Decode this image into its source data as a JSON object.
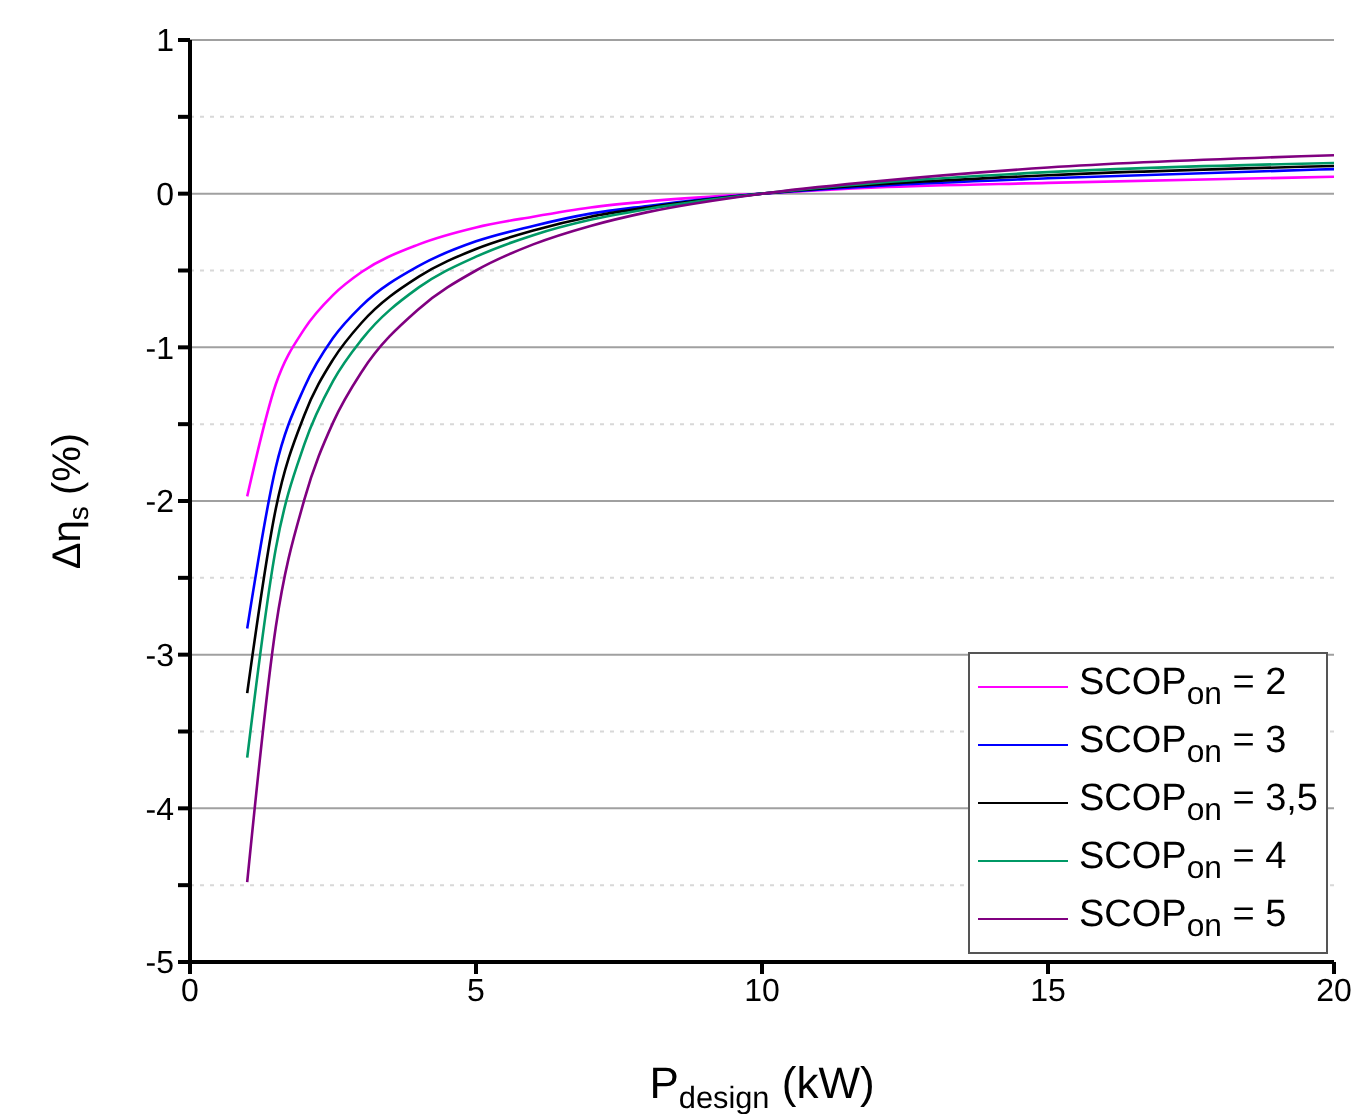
{
  "chart_data": {
    "type": "line",
    "xlabel": "P$_{design}$ (kW)",
    "ylabel": "Δη$_{s}$ (%)",
    "x": [
      1,
      1.5,
      2,
      2.5,
      3,
      4,
      5,
      6,
      7,
      8,
      10,
      12,
      15,
      20
    ],
    "series": [
      {
        "name": "SCOP$_{on}$ = 2",
        "color": "#ff00ff",
        "values": [
          -1.97,
          -1.24,
          -0.88,
          -0.66,
          -0.51,
          -0.33,
          -0.22,
          -0.15,
          -0.09,
          -0.05,
          0,
          0.04,
          0.07,
          0.11
        ]
      },
      {
        "name": "SCOP$_{on}$ = 3",
        "color": "#0000ff",
        "values": [
          -2.83,
          -1.78,
          -1.26,
          -0.94,
          -0.73,
          -0.47,
          -0.31,
          -0.21,
          -0.13,
          -0.08,
          0,
          0.05,
          0.1,
          0.16
        ]
      },
      {
        "name": "SCOP$_{on}$ = 3,5",
        "color": "#000000",
        "values": [
          -3.25,
          -2.05,
          -1.44,
          -1.08,
          -0.84,
          -0.54,
          -0.36,
          -0.24,
          -0.15,
          -0.09,
          0,
          0.06,
          0.12,
          0.18
        ]
      },
      {
        "name": "SCOP$_{on}$ = 4",
        "color": "#009966",
        "values": [
          -3.67,
          -2.31,
          -1.63,
          -1.22,
          -0.95,
          -0.61,
          -0.41,
          -0.27,
          -0.17,
          -0.1,
          0,
          0.07,
          0.14,
          0.2
        ]
      },
      {
        "name": "SCOP$_{on}$ = 5",
        "color": "#800080",
        "values": [
          -4.48,
          -2.82,
          -1.99,
          -1.49,
          -1.16,
          -0.75,
          -0.5,
          -0.33,
          -0.21,
          -0.12,
          0,
          0.08,
          0.17,
          0.25
        ]
      }
    ],
    "xlim": [
      0,
      20
    ],
    "xticks": [
      0,
      5,
      10,
      15,
      20
    ],
    "ylim": [
      -5,
      1
    ],
    "yticks": [
      -5,
      {
        "value": -4.5,
        "label": null
      },
      -4,
      {
        "value": -3.5,
        "label": null
      },
      -3,
      {
        "value": -2.5,
        "label": null
      },
      -2,
      {
        "value": -1.5,
        "label": null
      },
      -1,
      {
        "value": -0.5,
        "label": null
      },
      0,
      {
        "value": 0.5,
        "label": null
      },
      1
    ],
    "grid": "y",
    "legend": "bottom right",
    "marker": "none",
    "line_style": "solid"
  }
}
